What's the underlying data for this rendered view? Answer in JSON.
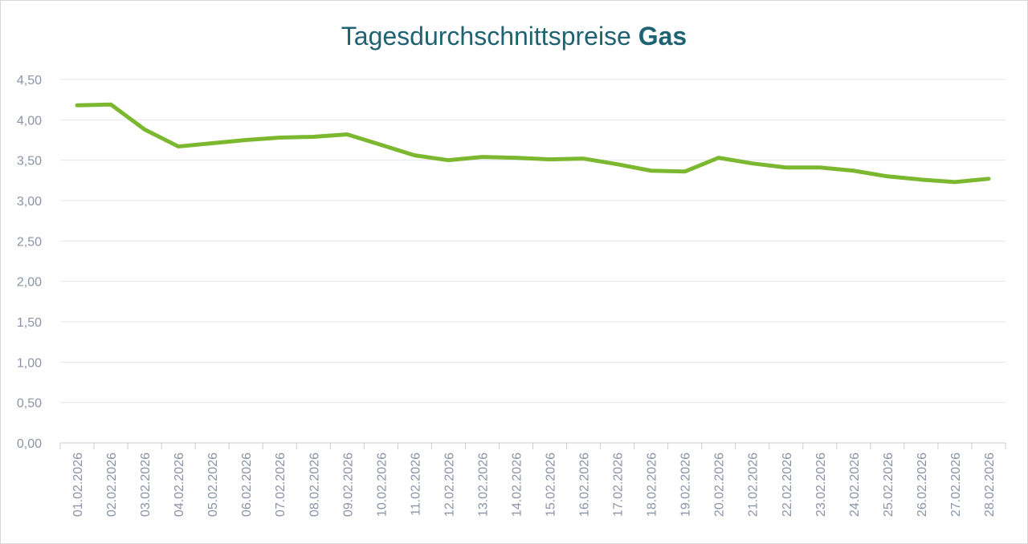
{
  "chart_data": {
    "type": "line",
    "title": "Tagesdurchschnittspreise",
    "title_highlight": "Gas",
    "categories": [
      "01.02.2026",
      "02.02.2026",
      "03.02.2026",
      "04.02.2026",
      "05.02.2026",
      "06.02.2026",
      "07.02.2026",
      "08.02.2026",
      "09.02.2026",
      "10.02.2026",
      "11.02.2026",
      "12.02.2026",
      "13.02.2026",
      "14.02.2026",
      "15.02.2026",
      "16.02.2026",
      "17.02.2026",
      "18.02.2026",
      "19.02.2026",
      "20.02.2026",
      "21.02.2026",
      "22.02.2026",
      "23.02.2026",
      "24.02.2026",
      "25.02.2026",
      "26.02.2026",
      "27.02.2026",
      "28.02.2026"
    ],
    "values": [
      4.18,
      4.19,
      3.88,
      3.67,
      3.71,
      3.75,
      3.78,
      3.79,
      3.82,
      3.69,
      3.56,
      3.5,
      3.54,
      3.53,
      3.51,
      3.52,
      3.45,
      3.37,
      3.36,
      3.53,
      3.46,
      3.41,
      3.41,
      3.37,
      3.3,
      3.26,
      3.23,
      3.27
    ],
    "color": "#7cb82f",
    "ylim": [
      0,
      4.5
    ],
    "yticks": [
      {
        "value": 0,
        "label": "0,00"
      },
      {
        "value": 0.5,
        "label": "0,50"
      },
      {
        "value": 1,
        "label": "1,00"
      },
      {
        "value": 1.5,
        "label": "1,50"
      },
      {
        "value": 2,
        "label": "2,00"
      },
      {
        "value": 2.5,
        "label": "2,50"
      },
      {
        "value": 3,
        "label": "3,00"
      },
      {
        "value": 3.5,
        "label": "3,50"
      },
      {
        "value": 4,
        "label": "4,00"
      },
      {
        "value": 4.5,
        "label": "4,50"
      }
    ],
    "grid": true
  }
}
